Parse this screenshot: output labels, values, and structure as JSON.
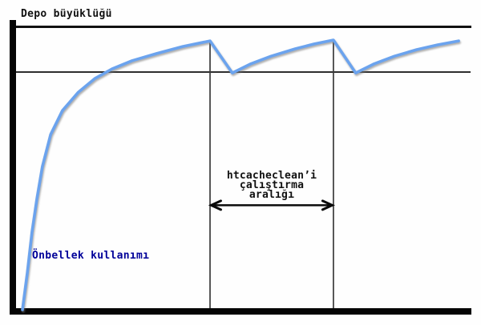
{
  "labels": {
    "y_axis_title": "Depo büyüklüğü",
    "series_label": "Önbellek kullanımı",
    "interval_lines": [
      "htcacheclean’i",
      "çalıştırma",
      "aralığı"
    ]
  },
  "colors": {
    "curve": "#6BA3EE",
    "curve_shadow": "rgba(115,115,115,0.6)",
    "series_label_text": "#000099",
    "axis": "#050505",
    "threshold_line": "#2e2e2e",
    "marker_line": "#3a3a3a",
    "arrow": "#0a0a0a"
  },
  "chart_data": {
    "type": "line",
    "title": "",
    "xlabel": "",
    "ylabel": "Depo büyüklüğü",
    "legend": "none",
    "grid": "off",
    "axes_numeric": false,
    "description": "Conceptual sawtooth diagram: cache disk usage grows toward the storage limit; each run of htcacheclean (vertical marker lines) trims it back down near the limit line, then it grows again.",
    "series": [
      {
        "name": "Önbellek kullanımı",
        "points_norm": [
          [
            0.014,
            0.0
          ],
          [
            0.025,
            0.133
          ],
          [
            0.035,
            0.274
          ],
          [
            0.046,
            0.393
          ],
          [
            0.058,
            0.506
          ],
          [
            0.076,
            0.619
          ],
          [
            0.102,
            0.703
          ],
          [
            0.137,
            0.768
          ],
          [
            0.173,
            0.816
          ],
          [
            0.211,
            0.85
          ],
          [
            0.255,
            0.879
          ],
          [
            0.308,
            0.904
          ],
          [
            0.366,
            0.929
          ],
          [
            0.426,
            0.949
          ],
          [
            0.475,
            0.836
          ],
          [
            0.514,
            0.867
          ],
          [
            0.56,
            0.895
          ],
          [
            0.613,
            0.921
          ],
          [
            0.655,
            0.938
          ],
          [
            0.697,
            0.952
          ],
          [
            0.746,
            0.836
          ],
          [
            0.785,
            0.867
          ],
          [
            0.831,
            0.895
          ],
          [
            0.88,
            0.918
          ],
          [
            0.926,
            0.935
          ],
          [
            0.972,
            0.949
          ]
        ]
      }
    ],
    "threshold_norm_y": 0.839,
    "cleanup_markers_norm_x": [
      0.426,
      0.697
    ],
    "marker_top_norm_y": 0.952,
    "interval_arrow_norm_y": 0.369,
    "annotation": "htcacheclean’i çalıştırma aralığı"
  }
}
